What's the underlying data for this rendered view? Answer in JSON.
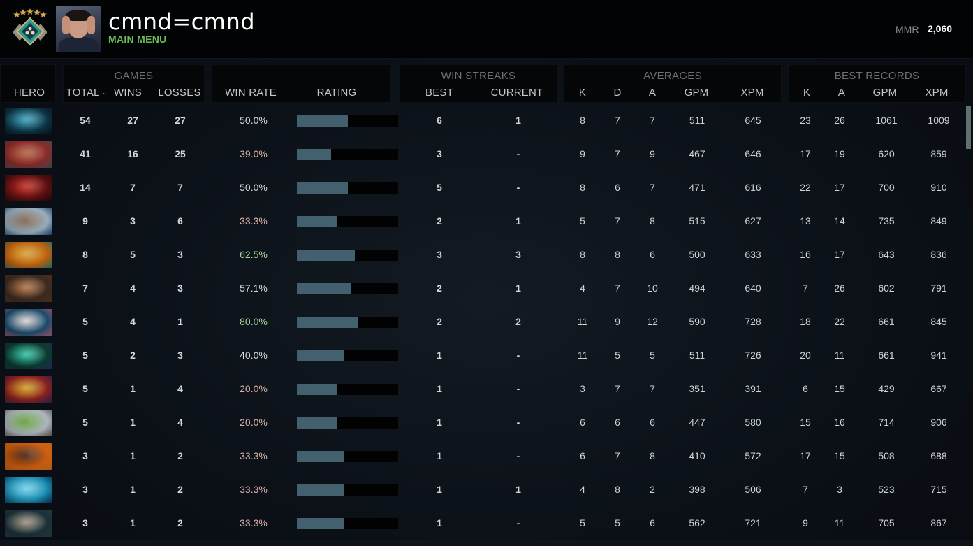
{
  "topbar": {
    "player_name": "cmnd=cmnd",
    "main_menu_label": "MAIN MENU",
    "mmr_label": "MMR",
    "mmr_value": "2,060",
    "rank_icon": "rank-medal-icon",
    "avatar_icon": "player-avatar"
  },
  "colors": {
    "accent_green": "#6dbb59",
    "winrate_good": "#a8d49a",
    "winrate_neutral": "#d8d8d8",
    "winrate_bad": "#d9b0a8",
    "rating_fill": "#43606e",
    "rating_track": "#020203"
  },
  "header": {
    "hero": "HERO",
    "groups": {
      "games": "GAMES",
      "win_streaks": "WIN STREAKS",
      "averages": "AVERAGES",
      "best_records": "BEST RECORDS"
    },
    "columns": {
      "total": "TOTAL",
      "wins": "WINS",
      "losses": "LOSSES",
      "win_rate": "WIN RATE",
      "rating": "RATING",
      "streak_best": "BEST",
      "streak_current": "CURRENT",
      "avg_k": "K",
      "avg_d": "D",
      "avg_a": "A",
      "avg_gpm": "GPM",
      "avg_xpm": "XPM",
      "best_k": "K",
      "best_a": "A",
      "best_gpm": "GPM",
      "best_xpm": "XPM"
    },
    "sort_indicator": "chevron-down-icon"
  },
  "rows": [
    {
      "hero_colors": [
        "#0c3444",
        "#3aa0b8",
        "#0a1a22"
      ],
      "total": "54",
      "wins": "27",
      "losses": "27",
      "win_rate": "50.0%",
      "wr_tone": "neutral",
      "rating_pct": 50,
      "streak_best": "6",
      "streak_current": "1",
      "avg_k": "8",
      "avg_d": "7",
      "avg_a": "7",
      "avg_gpm": "511",
      "avg_xpm": "645",
      "best_k": "23",
      "best_a": "26",
      "best_gpm": "1061",
      "best_xpm": "1009"
    },
    {
      "hero_colors": [
        "#8a2a2a",
        "#b06040",
        "#5a5a60"
      ],
      "total": "41",
      "wins": "16",
      "losses": "25",
      "win_rate": "39.0%",
      "wr_tone": "bad",
      "rating_pct": 34,
      "streak_best": "3",
      "streak_current": "-",
      "avg_k": "9",
      "avg_d": "7",
      "avg_a": "9",
      "avg_gpm": "467",
      "avg_xpm": "646",
      "best_k": "17",
      "best_a": "19",
      "best_gpm": "620",
      "best_xpm": "859"
    },
    {
      "hero_colors": [
        "#5a1010",
        "#c02a20",
        "#2a0a0a"
      ],
      "total": "14",
      "wins": "7",
      "losses": "7",
      "win_rate": "50.0%",
      "wr_tone": "neutral",
      "rating_pct": 50,
      "streak_best": "5",
      "streak_current": "-",
      "avg_k": "8",
      "avg_d": "6",
      "avg_a": "7",
      "avg_gpm": "471",
      "avg_xpm": "616",
      "best_k": "22",
      "best_a": "17",
      "best_gpm": "700",
      "best_xpm": "910"
    },
    {
      "hero_colors": [
        "#9ab0c0",
        "#7a5a40",
        "#2a5a8a"
      ],
      "total": "9",
      "wins": "3",
      "losses": "6",
      "win_rate": "33.3%",
      "wr_tone": "bad",
      "rating_pct": 40,
      "streak_best": "2",
      "streak_current": "1",
      "avg_k": "5",
      "avg_d": "7",
      "avg_a": "8",
      "avg_gpm": "515",
      "avg_xpm": "627",
      "best_k": "13",
      "best_a": "14",
      "best_gpm": "735",
      "best_xpm": "849"
    },
    {
      "hero_colors": [
        "#c06010",
        "#d0a030",
        "#2a8a7a"
      ],
      "total": "8",
      "wins": "5",
      "losses": "3",
      "win_rate": "62.5%",
      "wr_tone": "good",
      "rating_pct": 57,
      "streak_best": "3",
      "streak_current": "3",
      "avg_k": "8",
      "avg_d": "8",
      "avg_a": "6",
      "avg_gpm": "500",
      "avg_xpm": "633",
      "best_k": "16",
      "best_a": "17",
      "best_gpm": "643",
      "best_xpm": "836"
    },
    {
      "hero_colors": [
        "#3a2a20",
        "#b07040",
        "#6a3a20"
      ],
      "total": "7",
      "wins": "4",
      "losses": "3",
      "win_rate": "57.1%",
      "wr_tone": "neutral",
      "rating_pct": 54,
      "streak_best": "2",
      "streak_current": "1",
      "avg_k": "4",
      "avg_d": "7",
      "avg_a": "10",
      "avg_gpm": "494",
      "avg_xpm": "640",
      "best_k": "7",
      "best_a": "26",
      "best_gpm": "602",
      "best_xpm": "791"
    },
    {
      "hero_colors": [
        "#1a4a6a",
        "#d8d0d0",
        "#c07090"
      ],
      "total": "5",
      "wins": "4",
      "losses": "1",
      "win_rate": "80.0%",
      "wr_tone": "good",
      "rating_pct": 61,
      "streak_best": "2",
      "streak_current": "2",
      "avg_k": "11",
      "avg_d": "9",
      "avg_a": "12",
      "avg_gpm": "590",
      "avg_xpm": "728",
      "best_k": "18",
      "best_a": "22",
      "best_gpm": "661",
      "best_xpm": "845"
    },
    {
      "hero_colors": [
        "#0a3a30",
        "#30c0a0",
        "#2a3a6a"
      ],
      "total": "5",
      "wins": "2",
      "losses": "3",
      "win_rate": "40.0%",
      "wr_tone": "neutral",
      "rating_pct": 47,
      "streak_best": "1",
      "streak_current": "-",
      "avg_k": "11",
      "avg_d": "5",
      "avg_a": "5",
      "avg_gpm": "511",
      "avg_xpm": "726",
      "best_k": "20",
      "best_a": "11",
      "best_gpm": "661",
      "best_xpm": "941"
    },
    {
      "hero_colors": [
        "#8a2020",
        "#d0a020",
        "#3a2a5a"
      ],
      "total": "5",
      "wins": "1",
      "losses": "4",
      "win_rate": "20.0%",
      "wr_tone": "bad",
      "rating_pct": 39,
      "streak_best": "1",
      "streak_current": "-",
      "avg_k": "3",
      "avg_d": "7",
      "avg_a": "7",
      "avg_gpm": "351",
      "avg_xpm": "391",
      "best_k": "6",
      "best_a": "15",
      "best_gpm": "429",
      "best_xpm": "667"
    },
    {
      "hero_colors": [
        "#b0b8c0",
        "#5a9a30",
        "#707070"
      ],
      "total": "5",
      "wins": "1",
      "losses": "4",
      "win_rate": "20.0%",
      "wr_tone": "bad",
      "rating_pct": 39,
      "streak_best": "1",
      "streak_current": "-",
      "avg_k": "6",
      "avg_d": "6",
      "avg_a": "6",
      "avg_gpm": "447",
      "avg_xpm": "580",
      "best_k": "15",
      "best_a": "16",
      "best_gpm": "714",
      "best_xpm": "906"
    },
    {
      "hero_colors": [
        "#d06010",
        "#3a1a10",
        "#f08020"
      ],
      "total": "3",
      "wins": "1",
      "losses": "2",
      "win_rate": "33.3%",
      "wr_tone": "bad",
      "rating_pct": 47,
      "streak_best": "1",
      "streak_current": "-",
      "avg_k": "6",
      "avg_d": "7",
      "avg_a": "8",
      "avg_gpm": "410",
      "avg_xpm": "572",
      "best_k": "17",
      "best_a": "15",
      "best_gpm": "508",
      "best_xpm": "688"
    },
    {
      "hero_colors": [
        "#1a8ab0",
        "#70d0e8",
        "#0a3a60"
      ],
      "total": "3",
      "wins": "1",
      "losses": "2",
      "win_rate": "33.3%",
      "wr_tone": "bad",
      "rating_pct": 47,
      "streak_best": "1",
      "streak_current": "1",
      "avg_k": "4",
      "avg_d": "8",
      "avg_a": "2",
      "avg_gpm": "398",
      "avg_xpm": "506",
      "best_k": "7",
      "best_a": "3",
      "best_gpm": "523",
      "best_xpm": "715"
    },
    {
      "hero_colors": [
        "#1a3038",
        "#a09080",
        "#304a50"
      ],
      "total": "3",
      "wins": "1",
      "losses": "2",
      "win_rate": "33.3%",
      "wr_tone": "bad",
      "rating_pct": 47,
      "streak_best": "1",
      "streak_current": "-",
      "avg_k": "5",
      "avg_d": "5",
      "avg_a": "6",
      "avg_gpm": "562",
      "avg_xpm": "721",
      "best_k": "9",
      "best_a": "11",
      "best_gpm": "705",
      "best_xpm": "867"
    }
  ]
}
